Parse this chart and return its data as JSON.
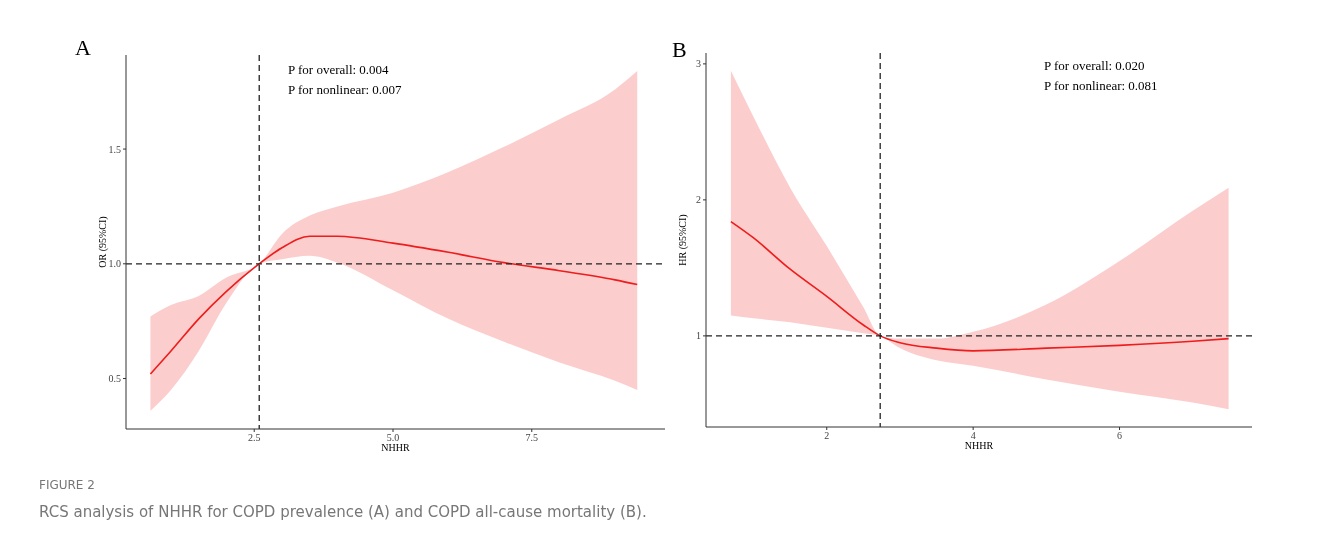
{
  "chart_data": [
    {
      "type": "line",
      "title": "A",
      "xlabel": "NHHR",
      "ylabel": "OR (95%CI)",
      "xlim": [
        0.19,
        9.9
      ],
      "ylim": [
        0.28,
        1.91
      ],
      "xticks": [
        {
          "value": 2.5,
          "label": "2.5"
        },
        {
          "value": 5,
          "label": "5.0"
        },
        {
          "value": 7.5,
          "label": "7.5"
        }
      ],
      "yticks": [
        {
          "value": 0.5,
          "label": "0.5"
        },
        {
          "value": 1,
          "label": "1.0"
        },
        {
          "value": 1.5,
          "label": "1.5"
        }
      ],
      "series": [
        {
          "color": "#ee1c1c",
          "x": [
            0.63,
            1,
            1.5,
            2,
            2.59,
            3,
            3.5,
            4,
            5,
            6,
            7,
            8,
            9,
            9.4
          ],
          "values": [
            0.52,
            0.62,
            0.76,
            0.88,
            1,
            1.07,
            1.12,
            1.12,
            1.09,
            1.05,
            1.005,
            0.97,
            0.93,
            0.91
          ],
          "lower": [
            0.36,
            0.45,
            0.62,
            0.83,
            1,
            1.02,
            1.035,
            1.005,
            0.885,
            0.76,
            0.66,
            0.57,
            0.49,
            0.45
          ],
          "upper": [
            0.77,
            0.82,
            0.86,
            0.94,
            1,
            1.13,
            1.21,
            1.25,
            1.31,
            1.4,
            1.51,
            1.63,
            1.76,
            1.84
          ]
        }
      ],
      "ref_lines": [
        {
          "axis": "x",
          "value": 2.59,
          "color": "#222222",
          "line_style": "dashed"
        },
        {
          "axis": "y",
          "value": 1,
          "color": "#222222",
          "line_style": "dashed"
        }
      ],
      "annotations": [
        "P for overall: 0.004",
        "P for nonlinear: 0.007",
        "FIGURE 2",
        "RCS analysis of NHHR for COPD prevalence (A) and COPD all-cause mortality (B)."
      ]
    },
    {
      "type": "line",
      "title": "B",
      "xlabel": "NHHR",
      "ylabel": "HR (95%CI)",
      "xlim": [
        0.35,
        7.81
      ],
      "ylim": [
        0.33,
        3.08
      ],
      "xticks": [
        2,
        4,
        6
      ],
      "yticks": [
        1,
        2,
        3
      ],
      "series": [
        {
          "color": "#ee1c1c",
          "x": [
            0.69,
            1,
            1.5,
            2,
            2.5,
            2.73,
            3,
            3.5,
            4,
            5,
            6,
            7,
            7.49
          ],
          "values": [
            1.84,
            1.72,
            1.49,
            1.29,
            1.08,
            1,
            0.95,
            0.91,
            0.89,
            0.91,
            0.93,
            0.96,
            0.98
          ],
          "lower": [
            1.15,
            1.13,
            1.1,
            1.06,
            1.02,
            1,
            0.91,
            0.82,
            0.78,
            0.68,
            0.59,
            0.51,
            0.46
          ],
          "upper": [
            2.95,
            2.61,
            2.09,
            1.66,
            1.21,
            1,
            0.98,
            0.98,
            1.03,
            1.23,
            1.55,
            1.92,
            2.09
          ]
        }
      ],
      "ref_lines": [
        {
          "axis": "x",
          "value": 2.73,
          "color": "#222222",
          "line_style": "dashed"
        },
        {
          "axis": "y",
          "value": 1,
          "color": "#222222",
          "line_style": "dashed"
        }
      ],
      "annotations": [
        "P for overall: 0.020",
        "P for nonlinear: 0.081"
      ]
    }
  ]
}
